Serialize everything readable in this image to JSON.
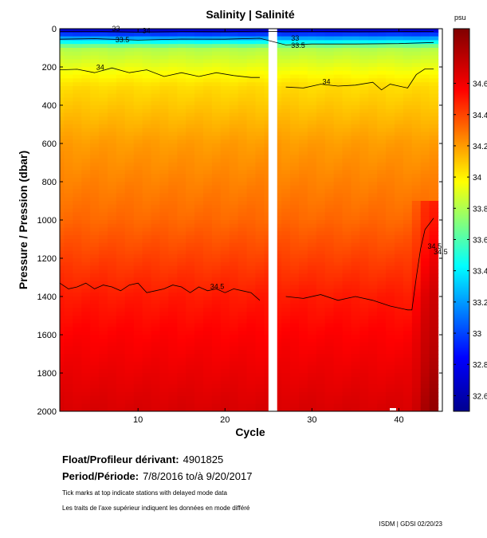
{
  "title": "Salinity | Salinité",
  "chart_data": {
    "type": "heatmap",
    "title": "Salinity | Salinité",
    "xlabel": "Cycle",
    "ylabel": "Pressure / Pression (dbar)",
    "xlim": [
      1,
      45
    ],
    "ylim": [
      2000,
      0
    ],
    "x_ticks": [
      10,
      20,
      30,
      40
    ],
    "y_ticks": [
      0,
      200,
      400,
      600,
      800,
      1000,
      1200,
      1400,
      1600,
      1800,
      2000
    ],
    "colorbar": {
      "unit": "psu",
      "range": [
        32.5,
        34.95
      ],
      "ticks": [
        32.6,
        32.8,
        33,
        33.2,
        33.4,
        33.6,
        33.8,
        34,
        34.2,
        34.4,
        34.6
      ],
      "tick_labels": [
        "32.6",
        "32.8",
        "33",
        "33.2",
        "33.4",
        "33.6",
        "33.8",
        "34",
        "34.2",
        "34.4",
        "34.6"
      ]
    },
    "data_gap_cycles": [
      25,
      26
    ],
    "contour_levels": [
      33,
      33.5,
      34,
      34.5
    ],
    "contour_labels": [
      "33",
      "33.5",
      "34",
      "34",
      "33",
      "33.5",
      "34",
      "34.5",
      "34.5",
      "34.5"
    ],
    "contours": [
      {
        "level": 33,
        "x": [
          1,
          5,
          10,
          15,
          20,
          24,
          27,
          30,
          35,
          40,
          44
        ],
        "y": [
          15,
          14,
          18,
          15,
          16,
          13,
          16,
          14,
          16,
          15,
          14
        ]
      },
      {
        "level": 33.5,
        "x": [
          1,
          5,
          10,
          15,
          20,
          24,
          27,
          30,
          35,
          40,
          44
        ],
        "y": [
          55,
          52,
          60,
          54,
          55,
          50,
          85,
          80,
          80,
          78,
          72
        ]
      },
      {
        "level": 34,
        "x": [
          1,
          3,
          5,
          7,
          9,
          11,
          13,
          15,
          17,
          19,
          21,
          23,
          24
        ],
        "y": [
          215,
          212,
          230,
          205,
          230,
          215,
          250,
          230,
          250,
          230,
          245,
          255,
          255
        ]
      },
      {
        "level": 34,
        "x": [
          27,
          29,
          31,
          33,
          35,
          37,
          38,
          39,
          40,
          41,
          42,
          43,
          44
        ],
        "y": [
          305,
          310,
          290,
          300,
          295,
          280,
          320,
          290,
          300,
          310,
          240,
          210,
          210
        ]
      },
      {
        "level": 34.5,
        "x": [
          1,
          2,
          3,
          4,
          5,
          6,
          7,
          8,
          9,
          10,
          11,
          12,
          13,
          14,
          15,
          16,
          17,
          18,
          19,
          20,
          21,
          22,
          23,
          24
        ],
        "y": [
          1330,
          1360,
          1350,
          1330,
          1360,
          1340,
          1350,
          1370,
          1340,
          1330,
          1380,
          1370,
          1360,
          1340,
          1350,
          1380,
          1350,
          1370,
          1360,
          1380,
          1360,
          1370,
          1380,
          1420
        ]
      },
      {
        "level": 34.5,
        "x": [
          27,
          29,
          31,
          33,
          35,
          37,
          39,
          41,
          41.5,
          42,
          42.5,
          43,
          44
        ],
        "y": [
          1400,
          1410,
          1390,
          1420,
          1400,
          1420,
          1450,
          1470,
          1470,
          1300,
          1150,
          1050,
          990
        ]
      }
    ]
  },
  "float_label": "Float/Profileur dérivant:",
  "float_id": "4901825",
  "period_label": "Period/Période:",
  "period_value": "7/8/2016  to/à  9/20/2017",
  "note_en": "Tick marks at top indicate stations with delayed mode data",
  "note_fr": "Les traits de l'axe supérieur indiquent les données en mode différé",
  "footer": "ISDM | GDSI  02/20/23"
}
